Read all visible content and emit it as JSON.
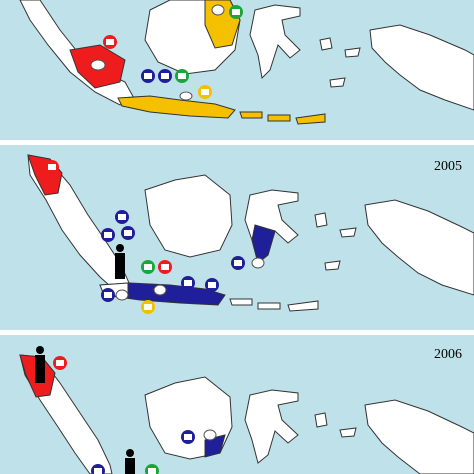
{
  "panels": [
    {
      "year_label": ""
    },
    {
      "year_label": "2005"
    },
    {
      "year_label": "2006"
    }
  ],
  "legend_colors": {
    "red": "#ee1c1c",
    "yellow": "#f5c000",
    "blue": "#1f1f9a",
    "green": "#1aa63a",
    "land": "#ffffff",
    "sea": "#bfe2ea"
  },
  "icon_types": [
    "poultry-cage-icon",
    "chicken-icon",
    "human-figure-icon",
    "bird-icon"
  ]
}
